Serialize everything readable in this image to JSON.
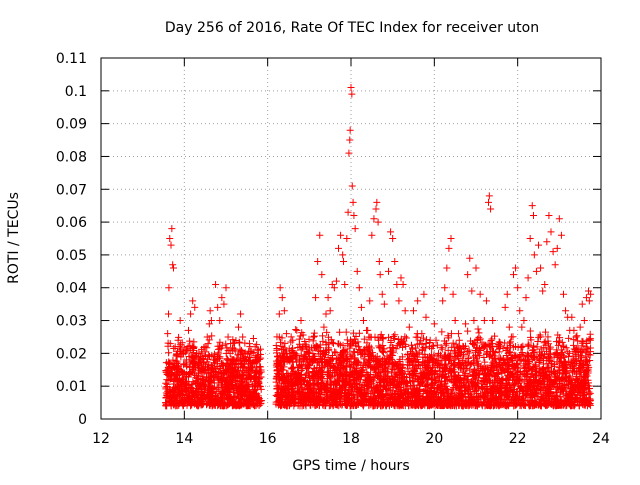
{
  "chart_data": {
    "type": "scatter",
    "title": "Day 256 of 2016, Rate Of TEC Index for receiver uton",
    "xlabel": "GPS time / hours",
    "ylabel": "ROTI / TECUs",
    "xlim": [
      12,
      24
    ],
    "ylim": [
      0,
      0.11
    ],
    "x_ticks": [
      12,
      14,
      16,
      18,
      20,
      22,
      24
    ],
    "x_tick_labels": [
      "12",
      "14",
      "16",
      "18",
      "20",
      "22",
      "24"
    ],
    "y_ticks": [
      0,
      0.01,
      0.02,
      0.03,
      0.04,
      0.05,
      0.06,
      0.07,
      0.08,
      0.09,
      0.1,
      0.11
    ],
    "y_tick_labels": [
      "0",
      "0.01",
      "0.02",
      "0.03",
      "0.04",
      "0.05",
      "0.06",
      "0.07",
      "0.08",
      "0.09",
      "0.1",
      "0.11"
    ],
    "grid": true,
    "marker": "+",
    "marker_color": "#ff0000",
    "data_gap_hours": [
      15.85,
      16.2
    ],
    "series": [
      {
        "name": "ROTI",
        "color": "#ff0000",
        "points": [
          [
            13.55,
            0.005
          ],
          [
            13.58,
            0.012
          ],
          [
            13.6,
            0.026
          ],
          [
            13.62,
            0.032
          ],
          [
            13.63,
            0.04
          ],
          [
            13.65,
            0.055
          ],
          [
            13.68,
            0.053
          ],
          [
            13.7,
            0.058
          ],
          [
            13.72,
            0.047
          ],
          [
            13.74,
            0.046
          ],
          [
            13.78,
            0.022
          ],
          [
            13.8,
            0.015
          ],
          [
            13.85,
            0.024
          ],
          [
            13.9,
            0.03
          ],
          [
            13.95,
            0.01
          ],
          [
            14.0,
            0.014
          ],
          [
            14.05,
            0.018
          ],
          [
            14.1,
            0.027
          ],
          [
            14.15,
            0.032
          ],
          [
            14.2,
            0.036
          ],
          [
            14.25,
            0.034
          ],
          [
            14.3,
            0.02
          ],
          [
            14.35,
            0.012
          ],
          [
            14.4,
            0.008
          ],
          [
            14.45,
            0.015
          ],
          [
            14.5,
            0.022
          ],
          [
            14.55,
            0.025
          ],
          [
            14.6,
            0.029
          ],
          [
            14.62,
            0.033
          ],
          [
            14.65,
            0.03
          ],
          [
            14.7,
            0.018
          ],
          [
            14.75,
            0.041
          ],
          [
            14.8,
            0.034
          ],
          [
            14.85,
            0.03
          ],
          [
            14.9,
            0.037
          ],
          [
            14.95,
            0.035
          ],
          [
            15.0,
            0.04
          ],
          [
            15.05,
            0.025
          ],
          [
            15.1,
            0.02
          ],
          [
            15.2,
            0.015
          ],
          [
            15.3,
            0.028
          ],
          [
            15.35,
            0.032
          ],
          [
            15.4,
            0.025
          ],
          [
            15.45,
            0.018
          ],
          [
            15.5,
            0.012
          ],
          [
            15.6,
            0.02
          ],
          [
            15.7,
            0.022
          ],
          [
            15.75,
            0.01
          ],
          [
            15.8,
            0.016
          ],
          [
            16.25,
            0.01
          ],
          [
            16.28,
            0.032
          ],
          [
            16.3,
            0.04
          ],
          [
            16.35,
            0.037
          ],
          [
            16.4,
            0.033
          ],
          [
            16.45,
            0.026
          ],
          [
            16.5,
            0.018
          ],
          [
            16.6,
            0.024
          ],
          [
            16.7,
            0.027
          ],
          [
            16.8,
            0.03
          ],
          [
            16.9,
            0.022
          ],
          [
            17.0,
            0.019
          ],
          [
            17.1,
            0.025
          ],
          [
            17.15,
            0.037
          ],
          [
            17.2,
            0.048
          ],
          [
            17.25,
            0.056
          ],
          [
            17.3,
            0.044
          ],
          [
            17.35,
            0.028
          ],
          [
            17.4,
            0.032
          ],
          [
            17.45,
            0.037
          ],
          [
            17.5,
            0.033
          ],
          [
            17.55,
            0.041
          ],
          [
            17.6,
            0.04
          ],
          [
            17.65,
            0.042
          ],
          [
            17.7,
            0.052
          ],
          [
            17.75,
            0.056
          ],
          [
            17.8,
            0.05
          ],
          [
            17.82,
            0.048
          ],
          [
            17.85,
            0.041
          ],
          [
            17.9,
            0.055
          ],
          [
            17.93,
            0.063
          ],
          [
            17.95,
            0.081
          ],
          [
            17.97,
            0.085
          ],
          [
            17.98,
            0.088
          ],
          [
            18.0,
            0.101
          ],
          [
            18.02,
            0.099
          ],
          [
            18.03,
            0.071
          ],
          [
            18.05,
            0.066
          ],
          [
            18.07,
            0.062
          ],
          [
            18.1,
            0.058
          ],
          [
            18.15,
            0.045
          ],
          [
            18.2,
            0.04
          ],
          [
            18.25,
            0.034
          ],
          [
            18.3,
            0.03
          ],
          [
            18.4,
            0.027
          ],
          [
            18.45,
            0.036
          ],
          [
            18.5,
            0.056
          ],
          [
            18.55,
            0.061
          ],
          [
            18.6,
            0.064
          ],
          [
            18.62,
            0.066
          ],
          [
            18.65,
            0.06
          ],
          [
            18.68,
            0.048
          ],
          [
            18.7,
            0.044
          ],
          [
            18.75,
            0.038
          ],
          [
            18.8,
            0.035
          ],
          [
            18.9,
            0.045
          ],
          [
            18.95,
            0.057
          ],
          [
            19.0,
            0.055
          ],
          [
            19.05,
            0.048
          ],
          [
            19.1,
            0.041
          ],
          [
            19.15,
            0.036
          ],
          [
            19.2,
            0.043
          ],
          [
            19.25,
            0.041
          ],
          [
            19.3,
            0.033
          ],
          [
            19.4,
            0.028
          ],
          [
            19.5,
            0.033
          ],
          [
            19.6,
            0.036
          ],
          [
            19.7,
            0.026
          ],
          [
            19.75,
            0.038
          ],
          [
            19.8,
            0.031
          ],
          [
            19.9,
            0.024
          ],
          [
            20.0,
            0.029
          ],
          [
            20.1,
            0.02
          ],
          [
            20.2,
            0.036
          ],
          [
            20.25,
            0.04
          ],
          [
            20.3,
            0.046
          ],
          [
            20.35,
            0.052
          ],
          [
            20.4,
            0.055
          ],
          [
            20.45,
            0.038
          ],
          [
            20.5,
            0.03
          ],
          [
            20.6,
            0.024
          ],
          [
            20.7,
            0.022
          ],
          [
            20.75,
            0.029
          ],
          [
            20.8,
            0.044
          ],
          [
            20.85,
            0.049
          ],
          [
            20.9,
            0.039
          ],
          [
            20.95,
            0.03
          ],
          [
            21.0,
            0.046
          ],
          [
            21.1,
            0.038
          ],
          [
            21.2,
            0.03
          ],
          [
            21.25,
            0.036
          ],
          [
            21.3,
            0.066
          ],
          [
            21.32,
            0.068
          ],
          [
            21.35,
            0.064
          ],
          [
            21.4,
            0.03
          ],
          [
            21.5,
            0.022
          ],
          [
            21.6,
            0.018
          ],
          [
            21.7,
            0.034
          ],
          [
            21.75,
            0.038
          ],
          [
            21.8,
            0.028
          ],
          [
            21.85,
            0.025
          ],
          [
            21.9,
            0.044
          ],
          [
            21.95,
            0.046
          ],
          [
            22.0,
            0.04
          ],
          [
            22.05,
            0.033
          ],
          [
            22.1,
            0.028
          ],
          [
            22.15,
            0.03
          ],
          [
            22.2,
            0.037
          ],
          [
            22.25,
            0.043
          ],
          [
            22.3,
            0.055
          ],
          [
            22.35,
            0.065
          ],
          [
            22.38,
            0.062
          ],
          [
            22.4,
            0.05
          ],
          [
            22.45,
            0.045
          ],
          [
            22.5,
            0.053
          ],
          [
            22.55,
            0.046
          ],
          [
            22.6,
            0.039
          ],
          [
            22.65,
            0.041
          ],
          [
            22.7,
            0.054
          ],
          [
            22.75,
            0.062
          ],
          [
            22.8,
            0.057
          ],
          [
            22.85,
            0.051
          ],
          [
            22.9,
            0.047
          ],
          [
            22.95,
            0.052
          ],
          [
            23.0,
            0.061
          ],
          [
            23.05,
            0.056
          ],
          [
            23.1,
            0.038
          ],
          [
            23.15,
            0.033
          ],
          [
            23.2,
            0.031
          ],
          [
            23.25,
            0.027
          ],
          [
            23.3,
            0.031
          ],
          [
            23.35,
            0.027
          ],
          [
            23.4,
            0.025
          ],
          [
            23.45,
            0.021
          ],
          [
            23.5,
            0.028
          ],
          [
            23.55,
            0.035
          ],
          [
            23.6,
            0.03
          ],
          [
            23.65,
            0.037
          ],
          [
            23.7,
            0.039
          ],
          [
            23.72,
            0.036
          ],
          [
            23.75,
            0.038
          ]
        ],
        "dense_band": {
          "segments": [
            {
              "x_start": 13.55,
              "x_end": 15.85,
              "y_min": 0.004,
              "y_max": 0.026
            },
            {
              "x_start": 16.2,
              "x_end": 23.75,
              "y_min": 0.004,
              "y_max": 0.028
            }
          ]
        }
      }
    ]
  }
}
